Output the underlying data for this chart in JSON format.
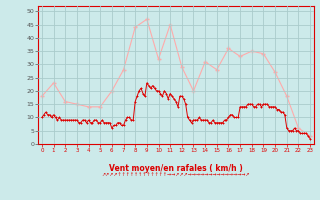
{
  "xlabel": "Vent moyen/en rafales ( km/h )",
  "bg_color": "#cceaea",
  "grid_color": "#aacccc",
  "avg_color": "#dd0000",
  "gust_color": "#ffaaaa",
  "ylim": [
    0,
    52
  ],
  "yticks": [
    0,
    5,
    10,
    15,
    20,
    25,
    30,
    35,
    40,
    45,
    50
  ],
  "xticks": [
    0,
    1,
    2,
    3,
    4,
    5,
    6,
    7,
    8,
    9,
    10,
    11,
    12,
    13,
    14,
    15,
    16,
    17,
    18,
    19,
    20,
    21,
    22,
    23
  ],
  "gust_x": [
    0,
    1,
    2,
    3,
    4,
    5,
    6,
    7,
    8,
    9,
    10,
    11,
    12,
    13,
    14,
    15,
    16,
    17,
    18,
    19,
    20,
    21,
    22,
    23
  ],
  "gust_wind": [
    18,
    23,
    16,
    15,
    14,
    14,
    20,
    28,
    44,
    47,
    32,
    45,
    29,
    20,
    31,
    28,
    36,
    33,
    35,
    34,
    27,
    18,
    6,
    3
  ],
  "avg_x": [
    0.0,
    0.17,
    0.33,
    0.5,
    0.67,
    0.83,
    1.0,
    1.17,
    1.33,
    1.5,
    1.67,
    1.83,
    2.0,
    2.17,
    2.33,
    2.5,
    2.67,
    2.83,
    3.0,
    3.17,
    3.33,
    3.5,
    3.67,
    3.83,
    4.0,
    4.17,
    4.33,
    4.5,
    4.67,
    4.83,
    5.0,
    5.17,
    5.33,
    5.5,
    5.67,
    5.83,
    6.0,
    6.17,
    6.33,
    6.5,
    6.67,
    6.83,
    7.0,
    7.17,
    7.33,
    7.5,
    7.67,
    7.83,
    8.0,
    8.17,
    8.33,
    8.5,
    8.67,
    8.83,
    9.0,
    9.17,
    9.33,
    9.5,
    9.67,
    9.83,
    10.0,
    10.17,
    10.33,
    10.5,
    10.67,
    10.83,
    11.0,
    11.17,
    11.33,
    11.5,
    11.67,
    11.83,
    12.0,
    12.17,
    12.33,
    12.5,
    12.67,
    12.83,
    13.0,
    13.17,
    13.33,
    13.5,
    13.67,
    13.83,
    14.0,
    14.17,
    14.33,
    14.5,
    14.67,
    14.83,
    15.0,
    15.17,
    15.33,
    15.5,
    15.67,
    15.83,
    16.0,
    16.17,
    16.33,
    16.5,
    16.67,
    16.83,
    17.0,
    17.17,
    17.33,
    17.5,
    17.67,
    17.83,
    18.0,
    18.17,
    18.33,
    18.5,
    18.67,
    18.83,
    19.0,
    19.17,
    19.33,
    19.5,
    19.67,
    19.83,
    20.0,
    20.17,
    20.33,
    20.5,
    20.67,
    20.83,
    21.0,
    21.17,
    21.33,
    21.5,
    21.67,
    21.83,
    22.0,
    22.17,
    22.33,
    22.5,
    22.67,
    22.83,
    23.0
  ],
  "avg_wind": [
    10,
    11,
    12,
    11,
    11,
    10,
    11,
    10,
    9,
    10,
    9,
    9,
    9,
    9,
    9,
    9,
    9,
    9,
    9,
    8,
    8,
    9,
    9,
    8,
    9,
    8,
    8,
    9,
    9,
    8,
    8,
    9,
    8,
    8,
    8,
    8,
    6,
    7,
    7,
    8,
    8,
    7,
    7,
    9,
    10,
    10,
    9,
    9,
    16,
    18,
    20,
    21,
    19,
    18,
    23,
    22,
    21,
    22,
    21,
    20,
    20,
    19,
    18,
    20,
    19,
    17,
    19,
    18,
    17,
    16,
    14,
    18,
    18,
    17,
    15,
    10,
    9,
    8,
    9,
    9,
    9,
    10,
    9,
    9,
    9,
    9,
    8,
    8,
    9,
    8,
    8,
    8,
    8,
    8,
    9,
    9,
    10,
    11,
    11,
    10,
    10,
    10,
    14,
    14,
    14,
    14,
    15,
    15,
    15,
    14,
    14,
    15,
    15,
    14,
    15,
    15,
    15,
    14,
    14,
    14,
    14,
    13,
    13,
    12,
    12,
    11,
    6,
    5,
    5,
    5,
    6,
    5,
    5,
    4,
    4,
    4,
    4,
    3,
    2
  ],
  "arrow_text": "↗↗↗↗↑↑↑↑↑↑↑↑↑↑↑↑→→↗↗↗→→→→→→→→→→→→→→↗",
  "marker_size": 2.0,
  "gust_marker_size": 3.0,
  "linewidth": 0.7,
  "gust_linewidth": 0.8
}
